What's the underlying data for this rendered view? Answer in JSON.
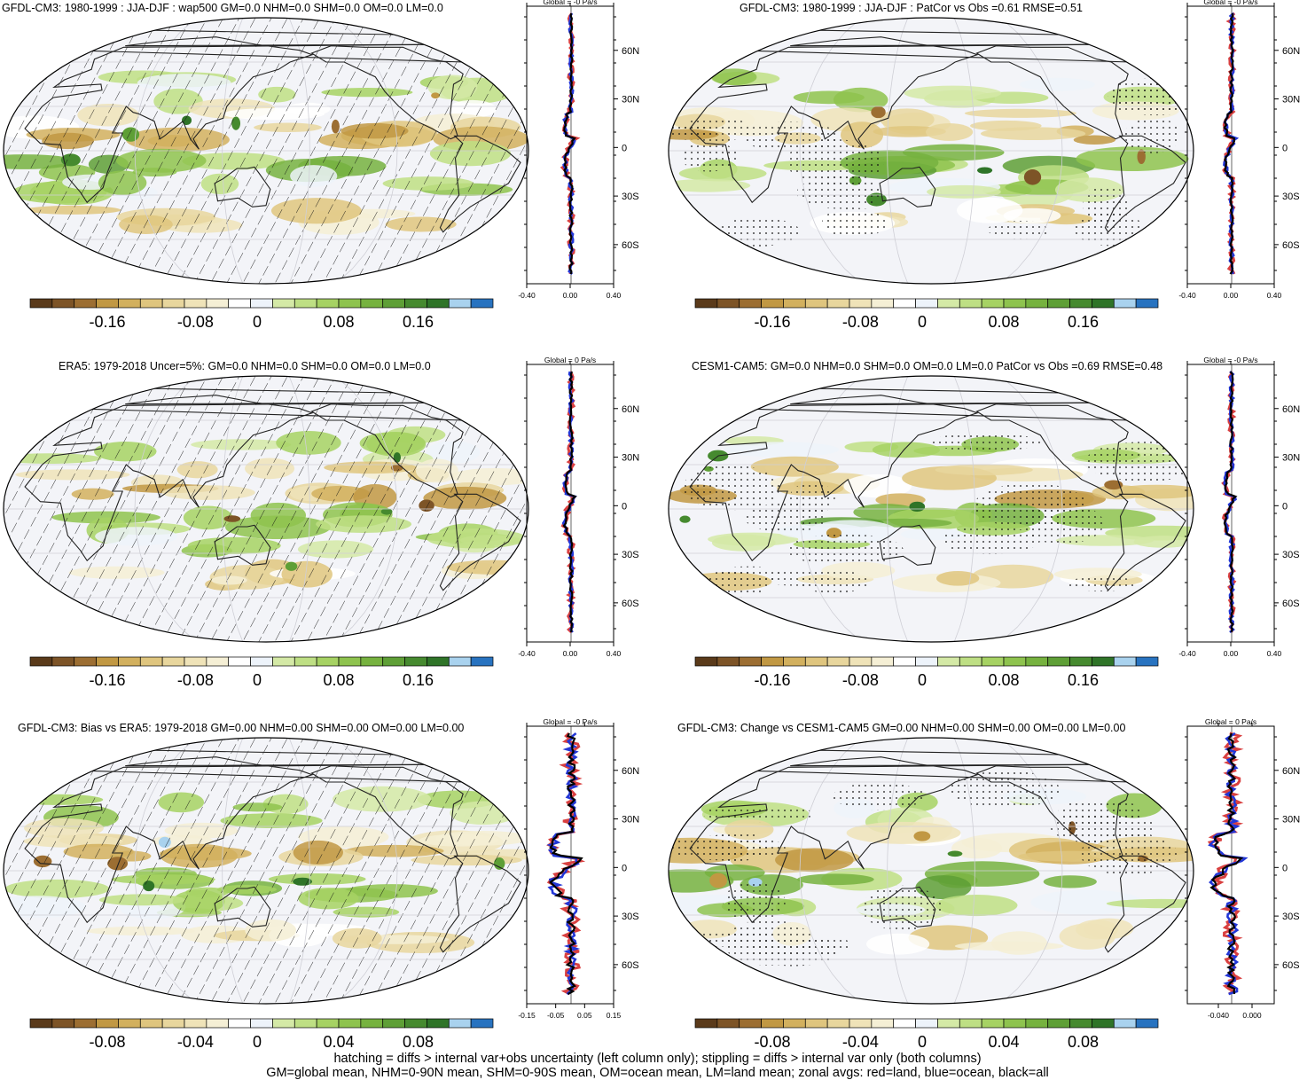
{
  "colors": {
    "palette": [
      "#5a3a1a",
      "#7d5427",
      "#9c6e32",
      "#c19843",
      "#d2b05e",
      "#dfc57e",
      "#e8d69d",
      "#efe3b8",
      "#f5efd5",
      "#ffffff",
      "#edf3fa",
      "#d4e9a6",
      "#bedf84",
      "#a6d263",
      "#8ec34e",
      "#76b23f",
      "#5e9f36",
      "#468a2f",
      "#2f7428",
      "#a9d2ee",
      "#2873c0"
    ],
    "land": "#d94040",
    "ocean": "#2236d6",
    "all": "#000000",
    "outline": "#222222"
  },
  "panels": [
    {
      "title": "GFDL-CM3: 1980-1999 : JJA-DJF : wap500 GM=0.0 NHM=0.0 SHM=0.0 OM=0.0 LM=0.0",
      "zonal_title": "Global = -0 Pa/s",
      "hatch": true,
      "seed": 3,
      "cb_labels": [
        "-0.16",
        "-0.08",
        "0",
        "0.08",
        "0.16"
      ],
      "zonal_ticks": [
        "-0.40",
        "0.00",
        "0.40"
      ]
    },
    {
      "title": "GFDL-CM3: 1980-1999 : JJA-DJF : PatCor vs Obs =0.61 RMSE=0.51",
      "zonal_title": "Global = -0 Pa/s",
      "hatch": false,
      "seed": 7,
      "cb_labels": [
        "-0.16",
        "-0.08",
        "0",
        "0.08",
        "0.16"
      ],
      "zonal_ticks": [
        "-0.40",
        "0.00",
        "0.40"
      ]
    },
    {
      "title": "ERA5: 1979-2018 Uncer=5%: GM=0.0 NHM=0.0 SHM=0.0 OM=0.0 LM=0.0",
      "zonal_title": "Global = 0 Pa/s",
      "hatch": true,
      "seed": 11,
      "cb_labels": [
        "-0.16",
        "-0.08",
        "0",
        "0.08",
        "0.16"
      ],
      "zonal_ticks": [
        "-0.40",
        "0.00",
        "0.40"
      ]
    },
    {
      "title": "CESM1-CAM5: GM=0.0 NHM=0.0 SHM=0.0 OM=0.0 LM=0.0 PatCor vs Obs =0.69 RMSE=0.48",
      "zonal_title": "Global = -0 Pa/s",
      "hatch": false,
      "seed": 17,
      "cb_labels": [
        "-0.16",
        "-0.08",
        "0",
        "0.08",
        "0.16"
      ],
      "zonal_ticks": [
        "-0.40",
        "0.00",
        "0.40"
      ]
    },
    {
      "title": "GFDL-CM3: Bias vs ERA5: 1979-2018 GM=0.00 NHM=0.00 SHM=0.00 OM=0.00 LM=0.00",
      "zonal_title": "Global = -0 Pa/s",
      "hatch": true,
      "seed": 23,
      "cb_labels": [
        "-0.08",
        "-0.04",
        "0",
        "0.04",
        "0.08"
      ],
      "zonal_ticks": [
        "-0.15",
        "-0.05",
        "0.05",
        "0.15"
      ]
    },
    {
      "title": "GFDL-CM3: Change vs CESM1-CAM5 GM=0.00 NHM=0.00 SHM=0.00 OM=0.00 LM=0.00",
      "zonal_title": "Global = 0 Pa/s",
      "hatch": false,
      "seed": 29,
      "cb_labels": [
        "-0.08",
        "-0.04",
        "0",
        "0.04",
        "0.08"
      ],
      "zonal_ticks": [
        "-0.040",
        "0.000"
      ]
    }
  ],
  "lat_ticks": [
    "60N",
    "30N",
    "0",
    "30S",
    "60S"
  ],
  "footer": {
    "line1": "hatching = diffs > internal var+obs uncertainty (left column only); stippling = diffs > internal var only (both columns)",
    "line2": "GM=global mean, NHM=0-90N mean, SHM=0-90S mean, OM=ocean mean, LM=land mean; zonal avgs: red=land, blue=ocean, black=all"
  }
}
